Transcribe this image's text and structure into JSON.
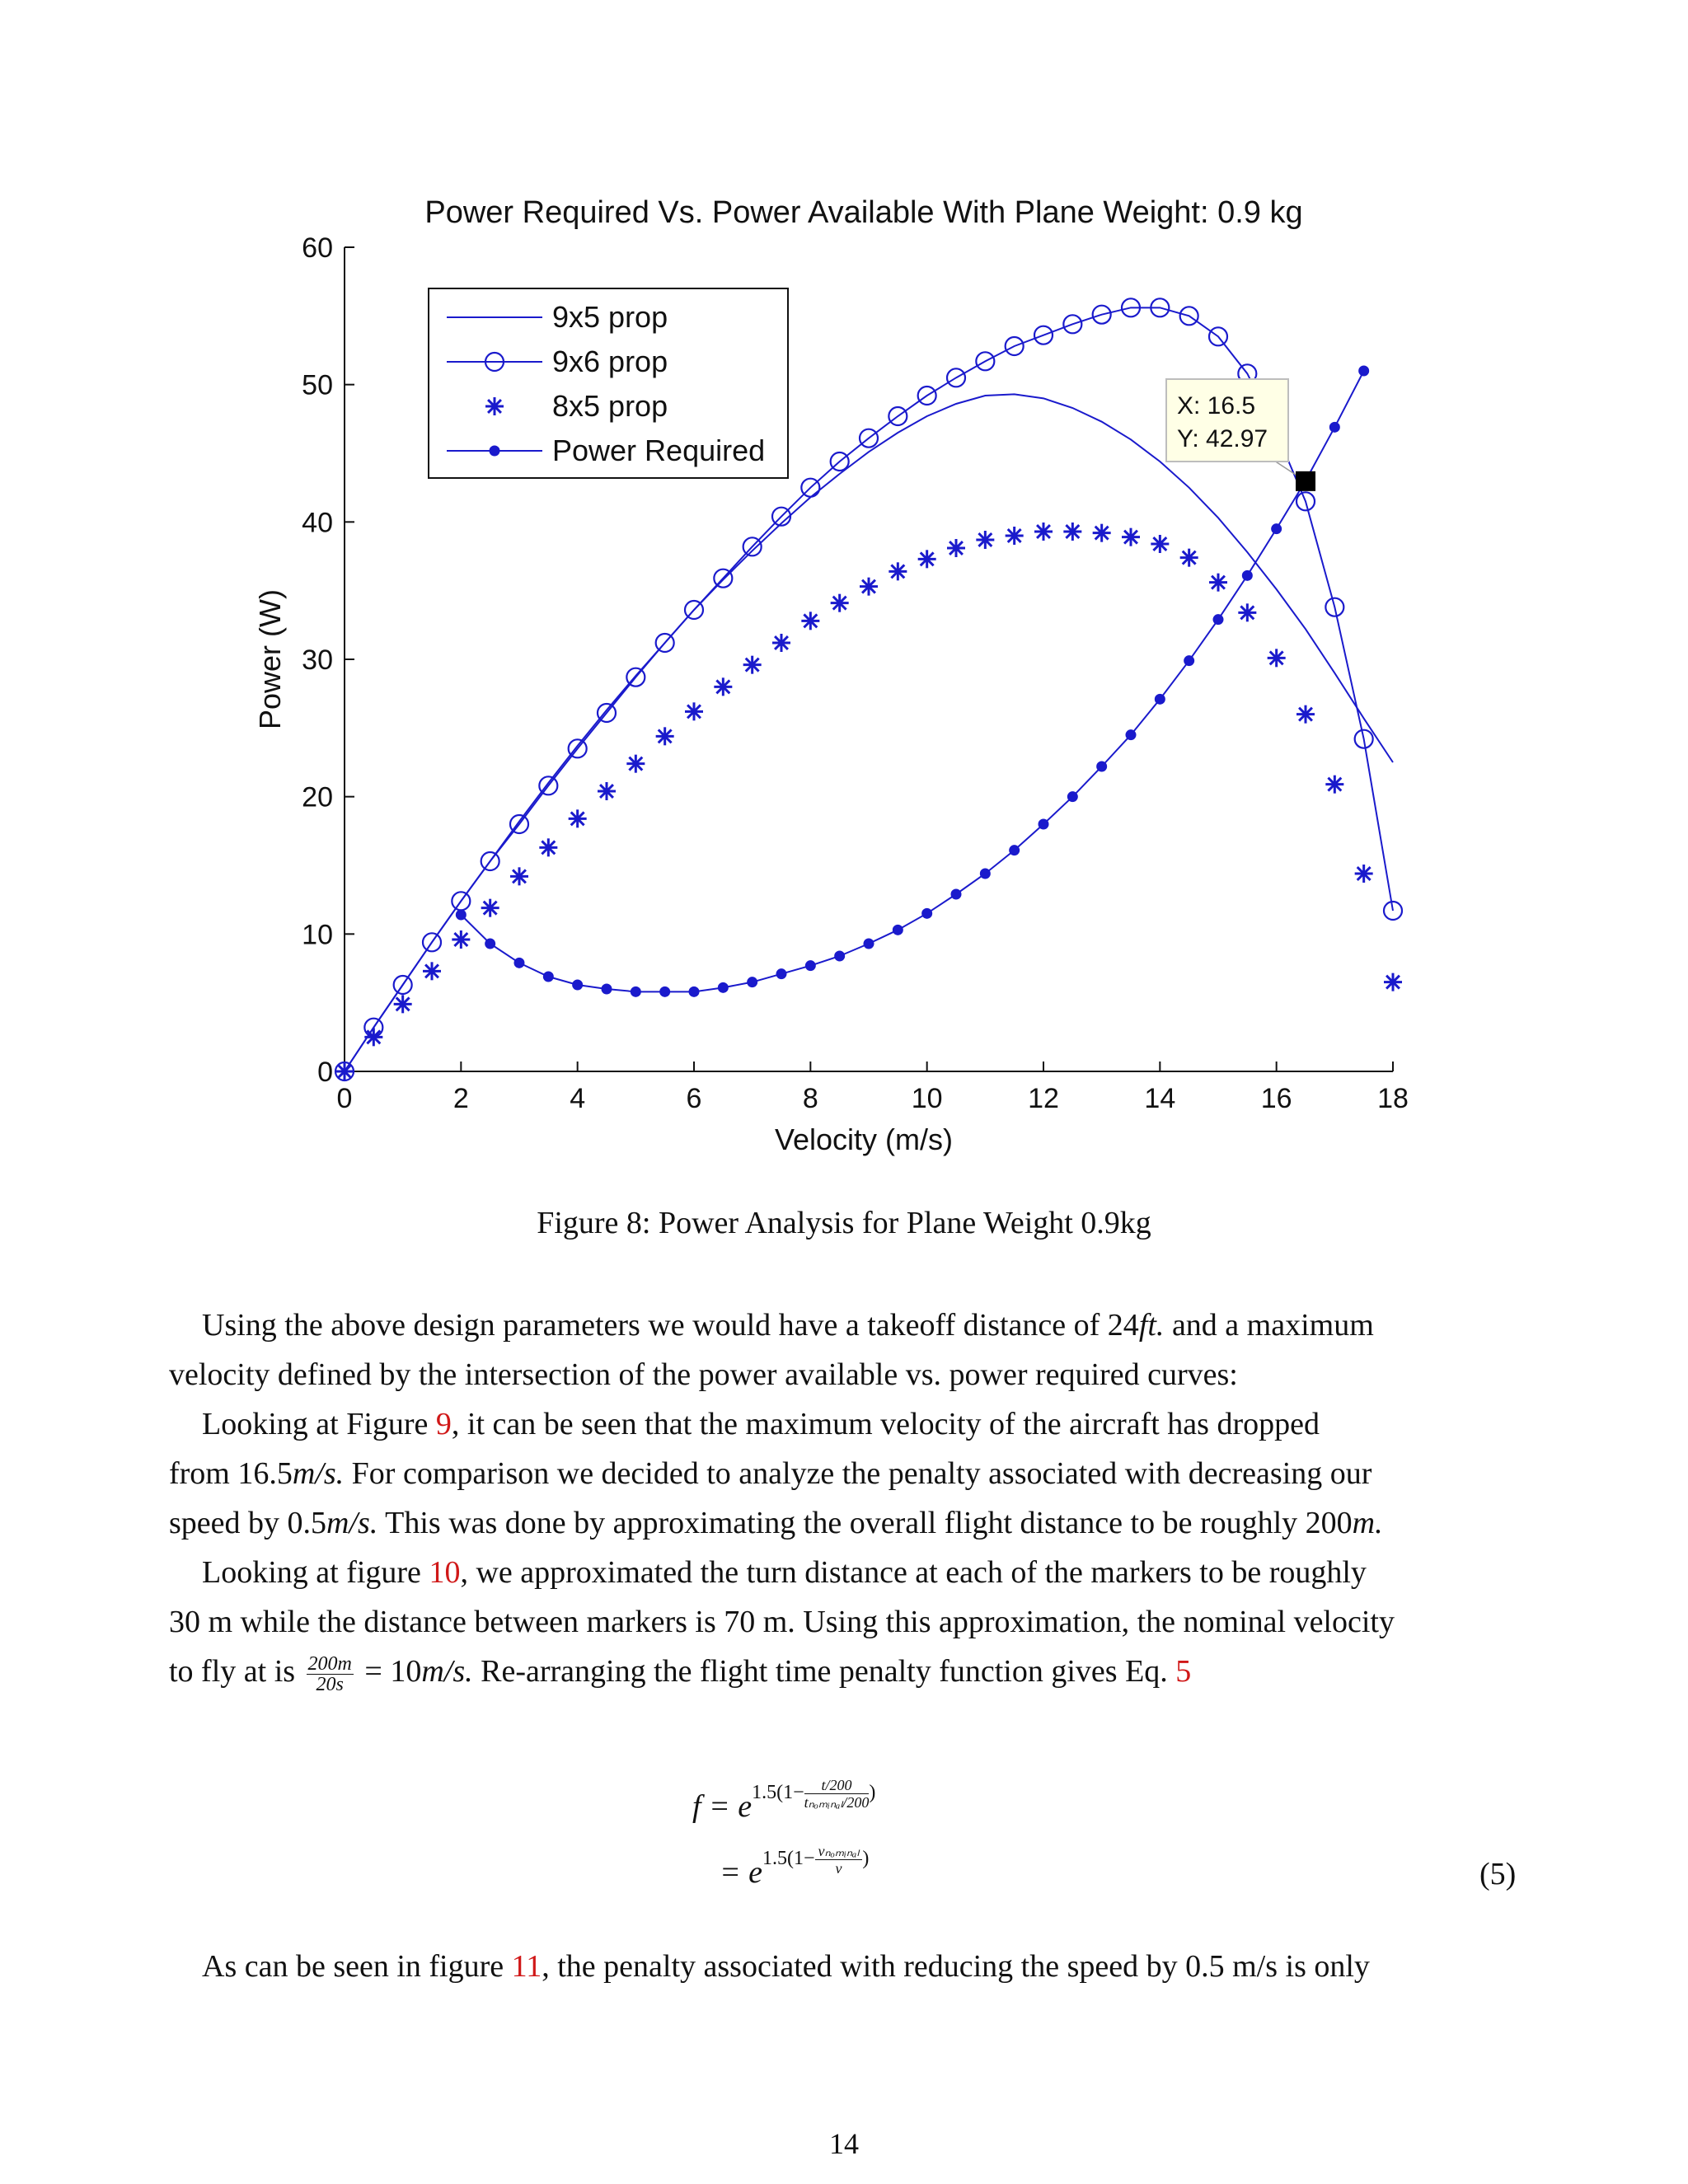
{
  "chart_data": {
    "type": "line",
    "title": "Power Required Vs. Power Available With Plane Weight: 0.9 kg",
    "xlabel": "Velocity (m/s)",
    "ylabel": "Power (W)",
    "xlim": [
      0,
      18
    ],
    "ylim": [
      0,
      60
    ],
    "xticks": [
      0,
      2,
      4,
      6,
      8,
      10,
      12,
      14,
      16,
      18
    ],
    "yticks": [
      0,
      10,
      20,
      30,
      40,
      50,
      60
    ],
    "legend_position": "top-left",
    "color": "#1a1acc",
    "series": [
      {
        "name": "9x5 prop",
        "marker": "none",
        "x": [
          0,
          0.5,
          1,
          1.5,
          2,
          2.5,
          3,
          3.5,
          4,
          4.5,
          5,
          5.5,
          6,
          6.5,
          7,
          7.5,
          8,
          8.5,
          9,
          9.5,
          10,
          10.5,
          11,
          11.5,
          12,
          12.5,
          13,
          13.5,
          14,
          14.5,
          15,
          15.5,
          16,
          16.5,
          17,
          17.5,
          18
        ],
        "y": [
          0,
          3.2,
          6.3,
          9.4,
          12.4,
          15.3,
          18.2,
          21.0,
          23.7,
          26.3,
          28.8,
          31.2,
          33.6,
          35.8,
          37.9,
          39.9,
          41.8,
          43.5,
          45.1,
          46.5,
          47.7,
          48.6,
          49.2,
          49.3,
          49.0,
          48.3,
          47.3,
          46.0,
          44.4,
          42.5,
          40.3,
          37.8,
          35.1,
          32.2,
          29.0,
          25.7,
          22.5
        ]
      },
      {
        "name": "9x6 prop",
        "marker": "circle",
        "x": [
          0,
          0.5,
          1,
          1.5,
          2,
          2.5,
          3,
          3.5,
          4,
          4.5,
          5,
          5.5,
          6,
          6.5,
          7,
          7.5,
          8,
          8.5,
          9,
          9.5,
          10,
          10.5,
          11,
          11.5,
          12,
          12.5,
          13,
          13.5,
          14,
          14.5,
          15,
          15.5,
          16,
          16.5,
          17,
          17.5,
          18
        ],
        "y": [
          0,
          3.2,
          6.3,
          9.4,
          12.4,
          15.3,
          18.0,
          20.8,
          23.5,
          26.1,
          28.7,
          31.2,
          33.6,
          35.9,
          38.2,
          40.4,
          42.5,
          44.4,
          46.1,
          47.7,
          49.2,
          50.5,
          51.7,
          52.8,
          53.6,
          54.4,
          55.1,
          55.6,
          55.6,
          55.0,
          53.5,
          50.8,
          46.5,
          41.5,
          33.8,
          24.2,
          11.7
        ]
      },
      {
        "name": "8x5 prop",
        "marker": "asterisk",
        "x": [
          0,
          0.5,
          1,
          1.5,
          2,
          2.5,
          3,
          3.5,
          4,
          4.5,
          5,
          5.5,
          6,
          6.5,
          7,
          7.5,
          8,
          8.5,
          9,
          9.5,
          10,
          10.5,
          11,
          11.5,
          12,
          12.5,
          13,
          13.5,
          14,
          14.5,
          15,
          15.5,
          16,
          16.5,
          17,
          17.5,
          18
        ],
        "y": [
          0,
          2.5,
          4.9,
          7.3,
          9.6,
          11.9,
          14.2,
          16.3,
          18.4,
          20.4,
          22.4,
          24.4,
          26.2,
          28.0,
          29.6,
          31.2,
          32.8,
          34.1,
          35.3,
          36.4,
          37.3,
          38.1,
          38.7,
          39.0,
          39.3,
          39.3,
          39.2,
          38.9,
          38.4,
          37.4,
          35.6,
          33.4,
          30.1,
          26.0,
          20.9,
          14.4,
          6.5
        ]
      },
      {
        "name": "Power Required",
        "marker": "dot",
        "x": [
          2,
          2.5,
          3,
          3.5,
          4,
          4.5,
          5,
          5.5,
          6,
          6.5,
          7,
          7.5,
          8,
          8.5,
          9,
          9.5,
          10,
          10.5,
          11,
          11.5,
          12,
          12.5,
          13,
          13.5,
          14,
          14.5,
          15,
          15.5,
          16,
          16.5,
          17,
          17.5
        ],
        "y": [
          11.4,
          9.3,
          7.9,
          6.9,
          6.3,
          6.0,
          5.8,
          5.8,
          5.8,
          6.1,
          6.5,
          7.1,
          7.7,
          8.4,
          9.3,
          10.3,
          11.5,
          12.9,
          14.4,
          16.1,
          18.0,
          20.0,
          22.2,
          24.5,
          27.1,
          29.9,
          32.9,
          36.1,
          39.5,
          43.0,
          46.9,
          51.0
        ]
      }
    ],
    "datatip": {
      "x_label": "X: 16.5",
      "y_label": "Y: 42.97",
      "x": 16.5,
      "y": 42.97
    }
  },
  "caption": "Figure 8: Power Analysis for Plane Weight 0.9kg",
  "para1": {
    "line1_a": "Using the above design parameters we would have a takeoff distance of 24",
    "line1_b": "ft.",
    "line1_c": " and a maximum",
    "line2": "velocity defined by the intersection of the power available vs. power required curves:"
  },
  "para2": {
    "line1_a": "Looking at Figure ",
    "line1_ref": "9",
    "line1_b": ", it can be seen that the maximum velocity of the aircraft has dropped",
    "line2_a": "from 16.5",
    "line2_m": "m/s.",
    "line2_b": " For comparison we decided to analyze the penalty associated with decreasing our",
    "line3_a": "speed by 0.5",
    "line3_m": "m/s.",
    "line3_b": " This was done by approximating the overall flight distance to be roughly 200",
    "line3_m2": "m."
  },
  "para3": {
    "line1_a": "Looking at figure  ",
    "line1_ref": "10",
    "line1_b": ", we approximated the turn distance at each of the markers to be roughly",
    "line2": "30 m while the distance between markers is 70 m. Using this approximation, the nominal velocity",
    "line3_a": "to fly at is ",
    "frac_num": "200m",
    "frac_den": "20s",
    "line3_b": " = 10",
    "line3_m": "m/s.",
    "line3_c": " Re-arranging the flight time penalty function gives Eq. ",
    "line3_ref": "5"
  },
  "equation": {
    "lhs": "f = e",
    "exp1_a": "1.5(1−",
    "exp1_num": "t/200",
    "exp1_den": "tₙₒₘᵢₙₐₗ/200",
    "exp1_b": ")",
    "line2_lhs": "= e",
    "exp2_a": "1.5(1−",
    "exp2_num": "vₙₒₘᵢₙₐₗ",
    "exp2_den": "v",
    "exp2_b": ")",
    "number": "(5)"
  },
  "para4": {
    "line1_a": "As can be seen in figure  ",
    "line1_ref": "11",
    "line1_b": ", the penalty associated with reducing the speed by 0.5 m/s is only"
  },
  "page_number": "14"
}
